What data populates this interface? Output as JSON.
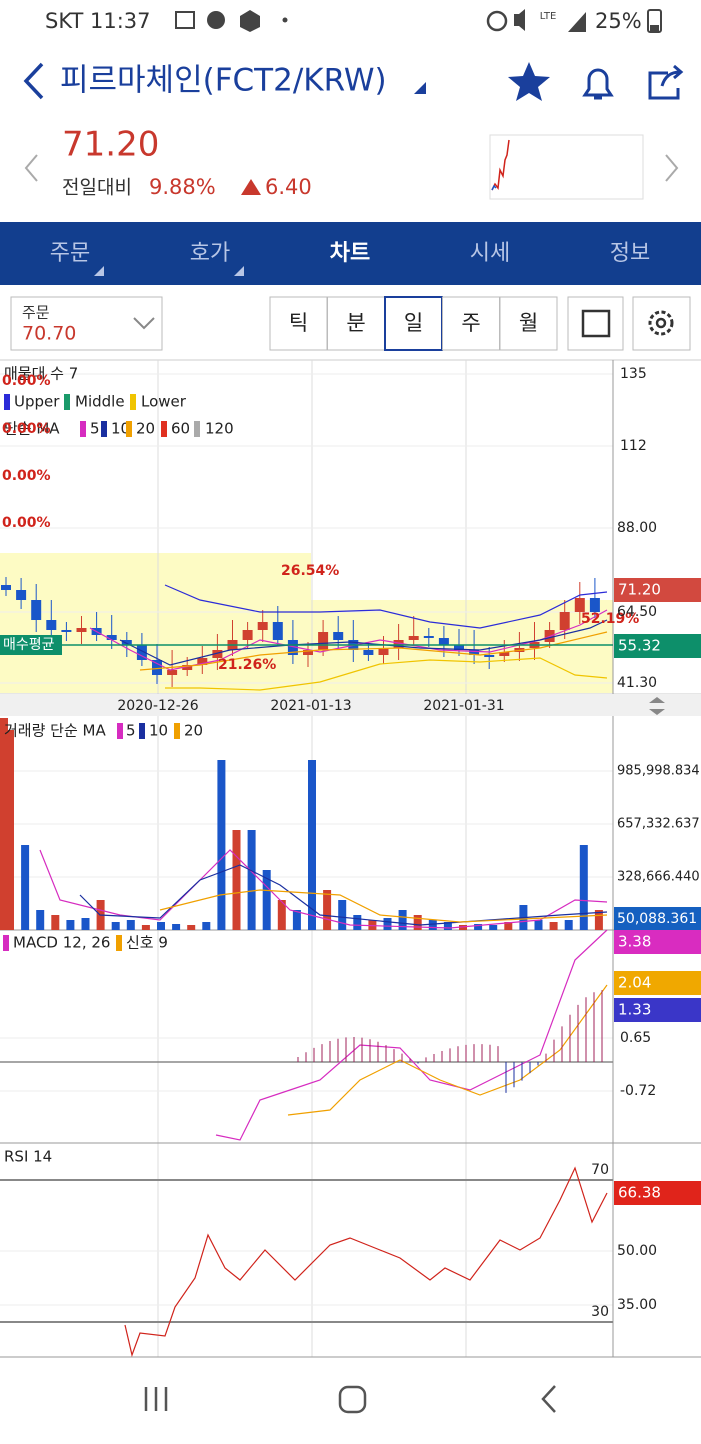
{
  "status_bar": {
    "carrier_time": "SKT 11:37",
    "network": "LTE",
    "battery": "25%"
  },
  "header": {
    "title": "피르마체인(FCT2/KRW)"
  },
  "quote": {
    "price": "71.20",
    "change_label": "전일대비",
    "change_pct": "9.88%",
    "change": "6.40"
  },
  "tabs": [
    "주문",
    "호가",
    "차트",
    "시세",
    "정보"
  ],
  "order": {
    "label": "주문",
    "price": "70.70"
  },
  "periods": [
    "틱",
    "분",
    "일",
    "주",
    "월"
  ],
  "price_panel": {
    "legend_title": "매물대 수 7",
    "bands": [
      "Upper",
      "Middle",
      "Lower"
    ],
    "ma_title": "단순 MA",
    "ma_periods": [
      "5",
      "10",
      "20",
      "60",
      "120"
    ],
    "volume_profile_labels": [
      "0.00%",
      "0.00%",
      "0.00%",
      "0.00%",
      "26.54%",
      "21.26%",
      "52.19%"
    ],
    "axis": [
      "135",
      "112",
      "88.00",
      "64.50",
      "41.30"
    ],
    "current": "71.20",
    "avg": "55.32",
    "avg_label": "매수평균",
    "dates": [
      "2020-12-26",
      "2021-01-13",
      "2021-01-31"
    ]
  },
  "volume_panel": {
    "title": "거래량 단순 MA",
    "ma_periods": [
      "5",
      "10",
      "20"
    ],
    "axis": [
      "985,998.834",
      "657,332.637",
      "328,666.440"
    ],
    "current": "50,088.361"
  },
  "macd_panel": {
    "title": "MACD 12, 26",
    "signal": "신호 9",
    "tags": [
      "3.38",
      "2.04",
      "1.33"
    ],
    "axis": [
      "0.65",
      "-0.72"
    ]
  },
  "rsi_panel": {
    "title": "RSI 14",
    "levels": [
      "70",
      "30"
    ],
    "current": "66.38",
    "axis": [
      "50.00",
      "35.00"
    ]
  }
}
